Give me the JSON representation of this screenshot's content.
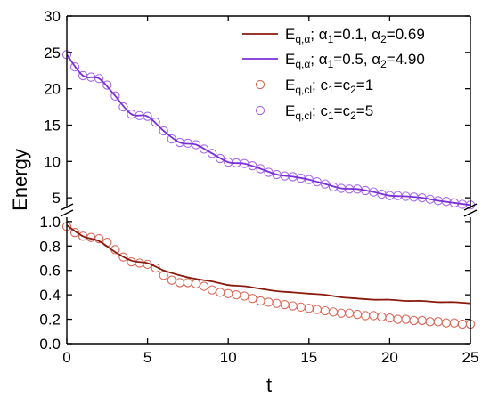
{
  "chart_data": {
    "type": "line",
    "xlabel": "t",
    "ylabel": "Energy",
    "xlim": [
      0,
      25
    ],
    "x_ticks": [
      "0",
      "5",
      "10",
      "15",
      "20",
      "25"
    ],
    "axis_break": true,
    "upper_panel": {
      "ylim": [
        3.3,
        30
      ],
      "y_ticks": [
        "5",
        "10",
        "15",
        "20",
        "25",
        "30"
      ]
    },
    "lower_panel": {
      "ylim": [
        0,
        1.05
      ],
      "y_ticks": [
        "0.0",
        "0.2",
        "0.4",
        "0.6",
        "0.8",
        "1.0"
      ]
    },
    "legend_position": "top-right",
    "series": [
      {
        "panel": "lower",
        "style": "line",
        "color": "#8b1a0e",
        "legend": {
          "main": "E",
          "sub": "q,α",
          "rest": "; α",
          "s1": "1",
          "mid": "=0.1, α",
          "s2": "2",
          "end": "=0.69"
        },
        "x": [
          0,
          1,
          2,
          3,
          4,
          5,
          6,
          7,
          8,
          9,
          10,
          11,
          12,
          13,
          14,
          15,
          16,
          17,
          18,
          19,
          20,
          21,
          22,
          23,
          24,
          25
        ],
        "y": [
          0.97,
          0.88,
          0.84,
          0.75,
          0.68,
          0.66,
          0.6,
          0.56,
          0.53,
          0.51,
          0.48,
          0.47,
          0.45,
          0.43,
          0.42,
          0.41,
          0.4,
          0.38,
          0.37,
          0.36,
          0.36,
          0.35,
          0.35,
          0.34,
          0.34,
          0.33
        ]
      },
      {
        "panel": "upper",
        "style": "line",
        "color": "#7a2fd8",
        "legend": {
          "main": "E",
          "sub": "q,α",
          "rest": "; α",
          "s1": "1",
          "mid": "=0.5, α",
          "s2": "2",
          "end": "=4.90"
        },
        "x": [
          0,
          1,
          2,
          3,
          4,
          5,
          6,
          7,
          8,
          9,
          10,
          11,
          12,
          13,
          14,
          15,
          16,
          17,
          18,
          19,
          20,
          21,
          22,
          23,
          24,
          25
        ],
        "y": [
          24.7,
          21.8,
          21.4,
          19.0,
          16.5,
          16.2,
          14.2,
          12.6,
          12.3,
          11.1,
          9.9,
          9.7,
          9.0,
          8.2,
          7.9,
          7.5,
          6.9,
          6.3,
          6.2,
          5.8,
          5.3,
          5.2,
          5.0,
          4.6,
          4.3,
          4.0
        ]
      },
      {
        "panel": "lower",
        "style": "markers",
        "color": "#d9695a",
        "legend": {
          "main": "E",
          "sub": "q,cl",
          "rest": "; c",
          "s1": "1",
          "mid": "=c",
          "s2": "2",
          "end": "=1"
        },
        "x": [
          0,
          0.5,
          1,
          1.5,
          2,
          2.5,
          3,
          3.5,
          4,
          4.5,
          5,
          5.5,
          6,
          6.5,
          7,
          7.5,
          8,
          8.5,
          9,
          9.5,
          10,
          10.5,
          11,
          11.5,
          12,
          12.5,
          13,
          13.5,
          14,
          14.5,
          15,
          15.5,
          16,
          16.5,
          17,
          17.5,
          18,
          18.5,
          19,
          19.5,
          20,
          20.5,
          21,
          21.5,
          22,
          22.5,
          23,
          23.5,
          24,
          24.5,
          25
        ],
        "y": [
          0.96,
          0.91,
          0.88,
          0.87,
          0.86,
          0.83,
          0.77,
          0.71,
          0.67,
          0.66,
          0.65,
          0.62,
          0.56,
          0.52,
          0.5,
          0.5,
          0.49,
          0.47,
          0.44,
          0.42,
          0.41,
          0.4,
          0.39,
          0.37,
          0.35,
          0.34,
          0.33,
          0.32,
          0.31,
          0.3,
          0.29,
          0.28,
          0.27,
          0.26,
          0.25,
          0.25,
          0.24,
          0.23,
          0.23,
          0.22,
          0.21,
          0.2,
          0.2,
          0.19,
          0.19,
          0.18,
          0.18,
          0.17,
          0.17,
          0.16,
          0.16
        ]
      },
      {
        "panel": "upper",
        "style": "markers",
        "color": "#a86ae8",
        "legend": {
          "main": "E",
          "sub": "q,cl",
          "rest": "; c",
          "s1": "1",
          "mid": "=c",
          "s2": "2",
          "end": "=5"
        },
        "x": [
          0,
          0.5,
          1,
          1.5,
          2,
          2.5,
          3,
          3.5,
          4,
          4.5,
          5,
          5.5,
          6,
          6.5,
          7,
          7.5,
          8,
          8.5,
          9,
          9.5,
          10,
          10.5,
          11,
          11.5,
          12,
          12.5,
          13,
          13.5,
          14,
          14.5,
          15,
          15.5,
          16,
          16.5,
          17,
          17.5,
          18,
          18.5,
          19,
          19.5,
          20,
          20.5,
          21,
          21.5,
          22,
          22.5,
          23,
          23.5,
          24,
          24.5,
          25
        ],
        "y": [
          24.7,
          23.0,
          21.8,
          21.6,
          21.4,
          20.5,
          19.0,
          17.5,
          16.5,
          16.3,
          16.2,
          15.4,
          14.2,
          13.1,
          12.6,
          12.5,
          12.3,
          11.7,
          11.1,
          10.4,
          9.9,
          9.8,
          9.7,
          9.4,
          9.0,
          8.5,
          8.2,
          8.0,
          7.9,
          7.7,
          7.5,
          7.2,
          6.9,
          6.5,
          6.3,
          6.2,
          6.2,
          6.0,
          5.8,
          5.5,
          5.3,
          5.3,
          5.2,
          5.1,
          5.0,
          4.8,
          4.6,
          4.5,
          4.3,
          4.1,
          4.0
        ]
      }
    ]
  }
}
